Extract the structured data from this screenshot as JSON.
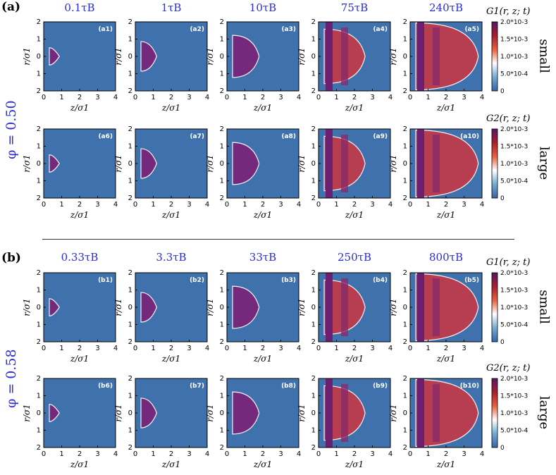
{
  "groups": [
    {
      "id": "a",
      "label": "(a)",
      "phi": "φ = 0.50",
      "times": [
        "0.1τB",
        "1τB",
        "10τB",
        "75τB",
        "240τB"
      ],
      "rows": [
        {
          "species": "small",
          "colorbar_title": "G1(r, z; t)",
          "panels": [
            "(a1)",
            "(a2)",
            "(a3)",
            "(a4)",
            "(a5)"
          ]
        },
        {
          "species": "large",
          "colorbar_title": "G2(r, z; t)",
          "panels": [
            "(a6)",
            "(a7)",
            "(a8)",
            "(a9)",
            "(a10)"
          ]
        }
      ]
    },
    {
      "id": "b",
      "label": "(b)",
      "phi": "φ = 0.58",
      "times": [
        "0.33τB",
        "3.3τB",
        "33τB",
        "250τB",
        "800τB"
      ],
      "rows": [
        {
          "species": "small",
          "colorbar_title": "G1(r, z; t)",
          "panels": [
            "(b1)",
            "(b2)",
            "(b3)",
            "(b4)",
            "(b5)"
          ]
        },
        {
          "species": "large",
          "colorbar_title": "G2(r, z; t)",
          "panels": [
            "(b6)",
            "(b7)",
            "(b8)",
            "(b9)",
            "(b10)"
          ]
        }
      ]
    }
  ],
  "axes": {
    "xlabel": "z/σ1",
    "ylabel": "r/σ1",
    "xticks": [
      "0",
      "1",
      "2",
      "3",
      "4"
    ],
    "yticks": [
      "2",
      "1",
      "0",
      "1",
      "2"
    ]
  },
  "colorbar": {
    "ticks": [
      "2.0*10-3",
      "1.5*10-3",
      "1.0*10-3",
      "5.0*10-4",
      "0"
    ],
    "colors": [
      "#3a63a8",
      "#73aad2",
      "#ffffff",
      "#e8603d",
      "#a52030",
      "#5a1660"
    ]
  },
  "colors": {
    "background": "#3f72ad",
    "label_blue": "#2b2bd8"
  }
}
